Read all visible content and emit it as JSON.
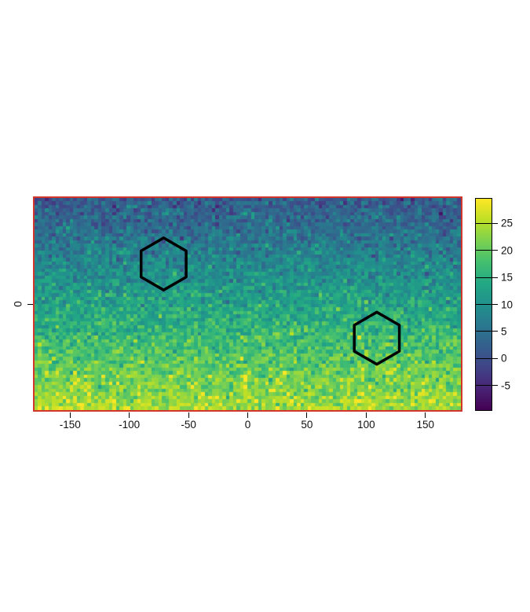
{
  "figure": {
    "background": "#ffffff",
    "plot_border_color": "#d1352b",
    "annotation_color": "#000000",
    "tick_color": "#000000"
  },
  "chart_data": {
    "type": "heatmap",
    "title": "",
    "xlabel": "",
    "ylabel": "",
    "x_range": [
      -180,
      180
    ],
    "y_range": [
      -90,
      90
    ],
    "x_ticks": [
      -150,
      -100,
      -50,
      0,
      50,
      100,
      150
    ],
    "y_ticks": [
      0
    ],
    "grid": false,
    "legend_position": "right",
    "colormap": "viridis",
    "colorbar": {
      "vmin": -9.5,
      "vmax": 29.5,
      "ticks": [
        25,
        20,
        15,
        10,
        5,
        0,
        -5
      ]
    },
    "raster": {
      "cols": 120,
      "rows": 60,
      "value_model": "linear vertical gradient plus gaussian noise",
      "top_row_mean": 1.5,
      "bottom_row_mean": 24.5,
      "noise_sd": 3.0,
      "seed": 11
    },
    "annotations": [
      {
        "shape": "hexagon",
        "orientation": "pointy-top",
        "center_x": -71,
        "center_y": 34,
        "radius": 22,
        "stroke": "#000000",
        "stroke_width": 3.5
      },
      {
        "shape": "hexagon",
        "orientation": "pointy-top",
        "center_x": 109,
        "center_y": -29,
        "radius": 22,
        "stroke": "#000000",
        "stroke_width": 3.5
      }
    ],
    "viridis_anchors": [
      "#440154",
      "#482475",
      "#414487",
      "#355f8d",
      "#2a788e",
      "#21918c",
      "#22a884",
      "#44bf70",
      "#7ad151",
      "#bddf26",
      "#fde725"
    ]
  }
}
